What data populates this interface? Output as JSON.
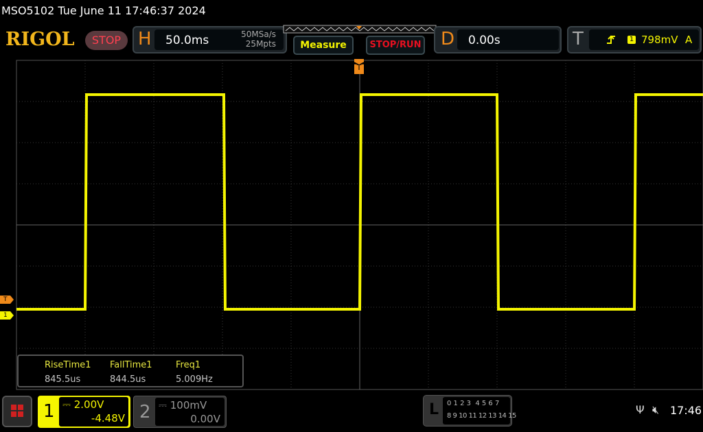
{
  "header": {
    "title": "MSO5102  Tue June 11 17:46:37 2024",
    "logo": "RIGOL",
    "run_state": "STOP"
  },
  "horizontal": {
    "label": "H",
    "timebase": "50.0ms",
    "sample_rate": "50MSa/s",
    "memory_depth": "25Mpts"
  },
  "buttons": {
    "measure": "Measure",
    "stop_run": "STOP/RUN"
  },
  "delay": {
    "label": "D",
    "value": "0.00s"
  },
  "trigger": {
    "label": "T",
    "slope_icon": "rising-edge-icon",
    "source": "1",
    "level": "798mV",
    "mode": "A"
  },
  "markers": {
    "trigger_top": "T",
    "trigger_level": "T",
    "channel1": "1"
  },
  "measurements": {
    "headers": [
      "RiseTime1",
      "FallTime1",
      "Freq1"
    ],
    "values": [
      "845.5us",
      "844.5us",
      "5.009Hz"
    ]
  },
  "channels": [
    {
      "id": "1",
      "scale": "2.00V",
      "offset": "-4.48V",
      "color": "#f5f500",
      "active": true
    },
    {
      "id": "2",
      "scale": "100mV",
      "offset": "0.00V",
      "color": "#888888",
      "active": false
    }
  ],
  "logic": {
    "label": "L",
    "row1": "0 1 2 3  4 5 6 7",
    "row2": "8 9 10 11 12 13 14 15"
  },
  "status": {
    "usb_icon": "usb-icon",
    "sound_icon": "mute-icon",
    "time": "17:46"
  },
  "colors": {
    "signal": "#f5f500",
    "accent": "#f08a1a",
    "grid": "#3a3a3a"
  }
}
